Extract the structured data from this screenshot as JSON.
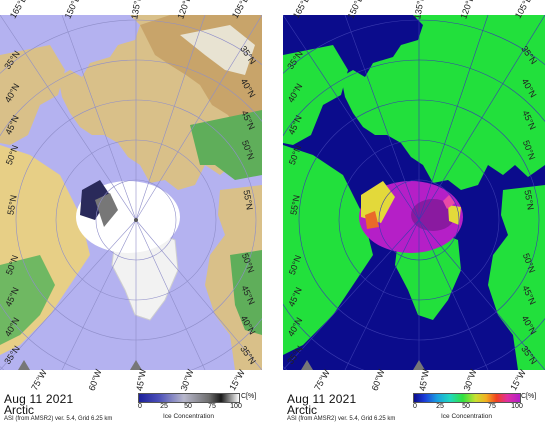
{
  "panels": [
    {
      "id": "left",
      "date": "Aug 11 2021",
      "region": "Arctic",
      "source": "ASI (from AMSR2) ver. 5.4,  Grid 6.25 km",
      "legend": {
        "ticks": [
          "0",
          "25",
          "50",
          "75",
          "100"
        ],
        "unit": "C[%]",
        "title": "Ice Concentration"
      },
      "top_longitudes": [
        "165°E",
        "150°E",
        "135°E",
        "120°E",
        "105°E"
      ],
      "bottom_longitudes": [
        "75°W",
        "60°W",
        "45°W",
        "30°W",
        "15°W"
      ],
      "left_latitudes": [
        "35°N",
        "40°N",
        "45°N",
        "50°N",
        "55°N",
        "50°N",
        "45°N",
        "40°N",
        "35°N"
      ],
      "right_latitudes": [
        "35°N",
        "40°N",
        "45°N",
        "50°N",
        "55°N",
        "50°N",
        "45°N",
        "40°N",
        "35°N"
      ]
    },
    {
      "id": "right",
      "date": "Aug 11 2021",
      "region": "Arctic",
      "source": "ASI (from AMSR2) ver. 5.4,  Grid 6.25 km",
      "legend": {
        "ticks": [
          "0",
          "25",
          "50",
          "75",
          "100"
        ],
        "unit": "C[%]",
        "title": "Ice Concentration"
      },
      "top_longitudes": [
        "165°E",
        "150°E",
        "135°E",
        "120°E",
        "105°E"
      ],
      "bottom_longitudes": [
        "75°W",
        "60°W",
        "45°W",
        "30°W",
        "15°W"
      ],
      "left_latitudes": [
        "35°N",
        "40°N",
        "45°N",
        "50°N",
        "55°N",
        "50°N",
        "45°N",
        "40°N",
        "35°N"
      ],
      "right_latitudes": [
        "35°N",
        "40°N",
        "45°N",
        "50°N",
        "55°N",
        "50°N",
        "45°N",
        "40°N",
        "35°N"
      ]
    }
  ],
  "colors": {
    "ocean_left": "#b4b2f0",
    "land_left": "#5fae5a",
    "ocean_right": "#0b0c8c",
    "land_right": "#22e03c",
    "ice_right": "#b51fc7"
  }
}
